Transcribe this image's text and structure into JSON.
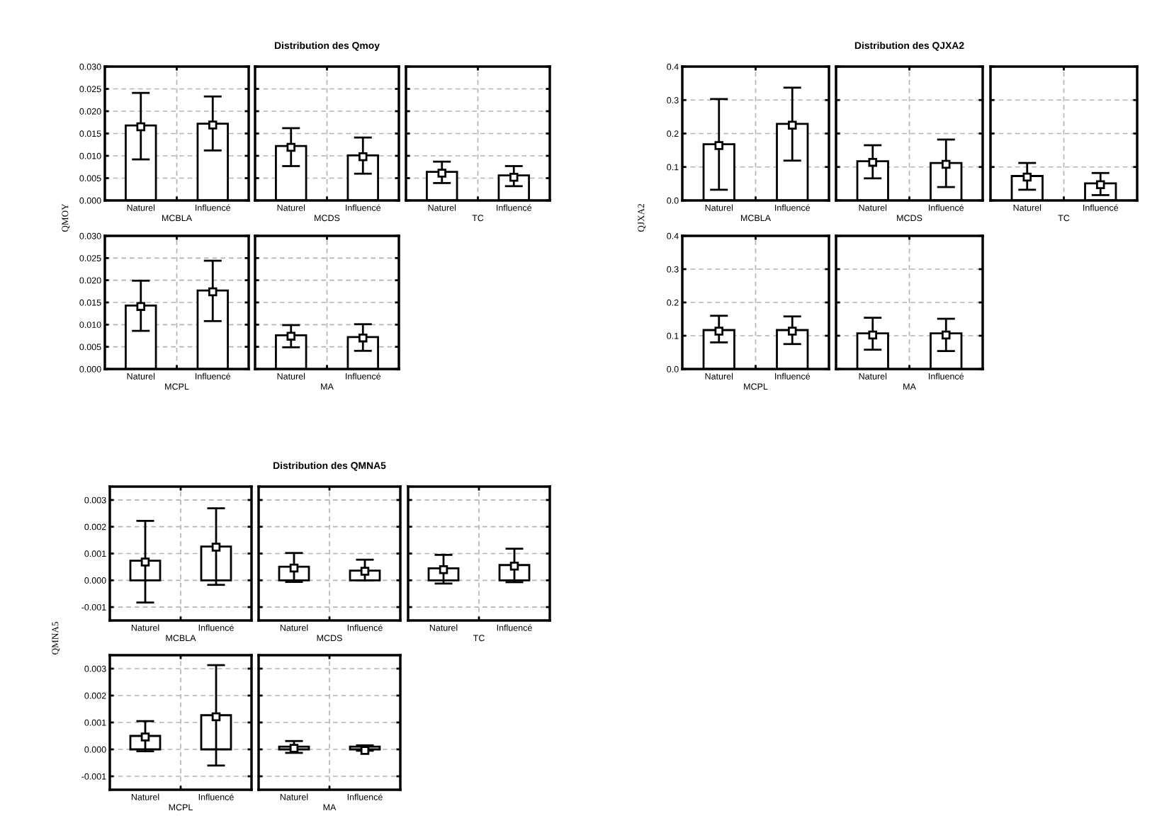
{
  "chart_data": [
    {
      "type": "bar",
      "ylabel": "QMOY",
      "categories": [
        "Naturel",
        "Influencé"
      ],
      "xlabel": "MCBLA",
      "ylim": [
        0,
        0.03
      ],
      "yticks": [
        {
          "value": 0,
          "label": "0.000"
        },
        {
          "value": 0.005,
          "label": "0.005"
        },
        {
          "value": 0.01,
          "label": "0.010"
        },
        {
          "value": 0.015,
          "label": "0.015"
        },
        {
          "value": 0.02,
          "label": "0.020"
        },
        {
          "value": 0.025,
          "label": "0.025"
        },
        {
          "value": 0.03,
          "label": "0.030"
        }
      ],
      "grid": true,
      "series": [
        {
          "color": "#ffffff",
          "values": [
            0.0168,
            0.0172
          ]
        },
        {
          "type": "scatter",
          "marker": "square",
          "color": "#ffffff",
          "values": [
            0.0165,
            0.0169
          ],
          "errors": [
            [
              0.0092,
              0.0241
            ],
            [
              0.0112,
              0.0233
            ]
          ]
        }
      ]
    },
    {
      "type": "bar",
      "title": "Distribution des Qmoy",
      "categories": [
        "Naturel",
        "Influencé"
      ],
      "xlabel": "MCDS",
      "ylim": [
        0,
        0.03
      ],
      "yticks": [
        {
          "value": 0,
          "label": null
        },
        {
          "value": 0.005,
          "label": null
        },
        {
          "value": 0.01,
          "label": null
        },
        {
          "value": 0.015,
          "label": null
        },
        {
          "value": 0.02,
          "label": null
        },
        {
          "value": 0.025,
          "label": null
        },
        {
          "value": 0.03,
          "label": null
        }
      ],
      "grid": true,
      "tick_labels": "x",
      "series": [
        {
          "color": "#ffffff",
          "values": [
            0.0122,
            0.0101
          ]
        },
        {
          "type": "scatter",
          "marker": "square",
          "color": "#ffffff",
          "values": [
            0.0119,
            0.0098
          ],
          "errors": [
            [
              0.0077,
              0.0162
            ],
            [
              0.006,
              0.0141
            ]
          ]
        }
      ]
    },
    {
      "type": "bar",
      "categories": [
        "Naturel",
        "Influencé"
      ],
      "xlabel": "TC",
      "ylim": [
        0,
        0.03
      ],
      "yticks": [
        {
          "value": 0,
          "label": null
        },
        {
          "value": 0.005,
          "label": null
        },
        {
          "value": 0.01,
          "label": null
        },
        {
          "value": 0.015,
          "label": null
        },
        {
          "value": 0.02,
          "label": null
        },
        {
          "value": 0.025,
          "label": null
        },
        {
          "value": 0.03,
          "label": null
        }
      ],
      "grid": true,
      "tick_labels": "x",
      "series": [
        {
          "color": "#ffffff",
          "values": [
            0.0064,
            0.0056
          ]
        },
        {
          "type": "scatter",
          "marker": "square",
          "color": "#ffffff",
          "values": [
            0.0061,
            0.0052
          ],
          "errors": [
            [
              0.0039,
              0.0087
            ],
            [
              0.0032,
              0.0077
            ]
          ]
        }
      ]
    },
    {
      "type": "bar",
      "categories": [
        "Naturel",
        "Influencé"
      ],
      "xlabel": "MCPL",
      "ylim": [
        0,
        0.03
      ],
      "yticks": [
        {
          "value": 0,
          "label": "0.000"
        },
        {
          "value": 0.005,
          "label": "0.005"
        },
        {
          "value": 0.01,
          "label": "0.010"
        },
        {
          "value": 0.015,
          "label": "0.015"
        },
        {
          "value": 0.02,
          "label": "0.020"
        },
        {
          "value": 0.025,
          "label": "0.025"
        },
        {
          "value": 0.03,
          "label": "0.030"
        }
      ],
      "grid": true,
      "series": [
        {
          "color": "#ffffff",
          "values": [
            0.0143,
            0.0177
          ]
        },
        {
          "type": "scatter",
          "marker": "square",
          "color": "#ffffff",
          "values": [
            0.0141,
            0.0174
          ],
          "errors": [
            [
              0.0086,
              0.0199
            ],
            [
              0.0108,
              0.0244
            ]
          ]
        }
      ]
    },
    {
      "type": "bar",
      "categories": [
        "Naturel",
        "Influencé"
      ],
      "xlabel": "MA",
      "ylim": [
        0,
        0.03
      ],
      "yticks": [
        {
          "value": 0,
          "label": null
        },
        {
          "value": 0.005,
          "label": null
        },
        {
          "value": 0.01,
          "label": null
        },
        {
          "value": 0.015,
          "label": null
        },
        {
          "value": 0.02,
          "label": null
        },
        {
          "value": 0.025,
          "label": null
        },
        {
          "value": 0.03,
          "label": null
        }
      ],
      "grid": true,
      "tick_labels": "x",
      "series": [
        {
          "color": "#ffffff",
          "values": [
            0.0076,
            0.0072
          ]
        },
        {
          "type": "scatter",
          "marker": "square",
          "color": "#ffffff",
          "values": [
            0.0074,
            0.007
          ],
          "errors": [
            [
              0.0049,
              0.0099
            ],
            [
              0.0041,
              0.0101
            ]
          ]
        }
      ]
    },
    {
      "type": "bar",
      "ylabel": "QJXA2",
      "categories": [
        "Naturel",
        "Influencé"
      ],
      "xlabel": "MCBLA",
      "ylim": [
        0,
        0.4
      ],
      "yticks": [
        {
          "value": 0,
          "label": "0.0"
        },
        0.1,
        0.2,
        0.3,
        0.4
      ],
      "grid": true,
      "series": [
        {
          "color": "#ffffff",
          "values": [
            0.168,
            0.229
          ]
        },
        {
          "type": "scatter",
          "marker": "square",
          "color": "#ffffff",
          "values": [
            0.164,
            0.225
          ],
          "errors": [
            [
              0.032,
              0.303
            ],
            [
              0.119,
              0.337
            ]
          ]
        }
      ]
    },
    {
      "type": "bar",
      "title": "Distribution des QJXA2",
      "categories": [
        "Naturel",
        "Influencé"
      ],
      "xlabel": "MCDS",
      "ylim": [
        0,
        0.4
      ],
      "yticks": [
        {
          "value": 0,
          "label": null
        },
        {
          "value": 0.1,
          "label": null
        },
        {
          "value": 0.2,
          "label": null
        },
        {
          "value": 0.3,
          "label": null
        },
        {
          "value": 0.4,
          "label": null
        }
      ],
      "grid": true,
      "tick_labels": "x",
      "series": [
        {
          "color": "#ffffff",
          "values": [
            0.117,
            0.112
          ]
        },
        {
          "type": "scatter",
          "marker": "square",
          "color": "#ffffff",
          "values": [
            0.114,
            0.108
          ],
          "errors": [
            [
              0.066,
              0.165
            ],
            [
              0.04,
              0.182
            ]
          ]
        }
      ]
    },
    {
      "type": "bar",
      "categories": [
        "Naturel",
        "Influencé"
      ],
      "xlabel": "TC",
      "ylim": [
        0,
        0.4
      ],
      "yticks": [
        {
          "value": 0,
          "label": null
        },
        {
          "value": 0.1,
          "label": null
        },
        {
          "value": 0.2,
          "label": null
        },
        {
          "value": 0.3,
          "label": null
        },
        {
          "value": 0.4,
          "label": null
        }
      ],
      "grid": true,
      "tick_labels": "x",
      "series": [
        {
          "color": "#ffffff",
          "values": [
            0.073,
            0.051
          ]
        },
        {
          "type": "scatter",
          "marker": "square",
          "color": "#ffffff",
          "values": [
            0.07,
            0.047
          ],
          "errors": [
            [
              0.032,
              0.112
            ],
            [
              0.016,
              0.082
            ]
          ]
        }
      ]
    },
    {
      "type": "bar",
      "categories": [
        "Naturel",
        "Influencé"
      ],
      "xlabel": "MCPL",
      "ylim": [
        0,
        0.4
      ],
      "yticks": [
        {
          "value": 0,
          "label": "0.0"
        },
        0.1,
        0.2,
        0.3,
        0.4
      ],
      "grid": true,
      "series": [
        {
          "color": "#ffffff",
          "values": [
            0.117,
            0.117
          ]
        },
        {
          "type": "scatter",
          "marker": "square",
          "color": "#ffffff",
          "values": [
            0.114,
            0.114
          ],
          "errors": [
            [
              0.08,
              0.16
            ],
            [
              0.075,
              0.158
            ]
          ]
        }
      ]
    },
    {
      "type": "bar",
      "categories": [
        "Naturel",
        "Influencé"
      ],
      "xlabel": "MA",
      "ylim": [
        0,
        0.4
      ],
      "yticks": [
        {
          "value": 0,
          "label": null
        },
        {
          "value": 0.1,
          "label": null
        },
        {
          "value": 0.2,
          "label": null
        },
        {
          "value": 0.3,
          "label": null
        },
        {
          "value": 0.4,
          "label": null
        }
      ],
      "grid": true,
      "tick_labels": "x",
      "series": [
        {
          "color": "#ffffff",
          "values": [
            0.107,
            0.107
          ]
        },
        {
          "type": "scatter",
          "marker": "square",
          "color": "#ffffff",
          "values": [
            0.102,
            0.102
          ],
          "errors": [
            [
              0.058,
              0.154
            ],
            [
              0.054,
              0.151
            ]
          ]
        }
      ]
    },
    {
      "type": "bar",
      "ylabel": "QMNA5",
      "categories": [
        "Naturel",
        "Influencé"
      ],
      "xlabel": "MCBLA",
      "ylim": [
        -0.0015,
        0.0035
      ],
      "yticks": [
        -0.001,
        {
          "value": 0,
          "label": "0.000"
        },
        0.001,
        0.002,
        0.003
      ],
      "grid": true,
      "series": [
        {
          "color": "#ffffff",
          "values": [
            0.00073,
            0.00126
          ]
        },
        {
          "type": "scatter",
          "marker": "square",
          "color": "#ffffff",
          "values": [
            0.00068,
            0.00124
          ],
          "errors": [
            [
              -0.00083,
              0.00222
            ],
            [
              -0.00017,
              0.00269
            ]
          ]
        }
      ]
    },
    {
      "type": "bar",
      "title": "Distribution des QMNA5",
      "categories": [
        "Naturel",
        "Influencé"
      ],
      "xlabel": "MCDS",
      "ylim": [
        -0.0015,
        0.0035
      ],
      "yticks": [
        {
          "value": -0.001,
          "label": null
        },
        {
          "value": 0,
          "label": null
        },
        {
          "value": 0.001,
          "label": null
        },
        {
          "value": 0.002,
          "label": null
        },
        {
          "value": 0.003,
          "label": null
        }
      ],
      "grid": true,
      "tick_labels": "x",
      "series": [
        {
          "color": "#ffffff",
          "values": [
            0.00051,
            0.00036
          ]
        },
        {
          "type": "scatter",
          "marker": "square",
          "color": "#ffffff",
          "values": [
            0.00046,
            0.00034
          ],
          "errors": [
            [
              -6e-05,
              0.00102
            ],
            [
              0.0,
              0.00077
            ]
          ]
        }
      ]
    },
    {
      "type": "bar",
      "categories": [
        "Naturel",
        "Influencé"
      ],
      "xlabel": "TC",
      "ylim": [
        -0.0015,
        0.0035
      ],
      "yticks": [
        {
          "value": -0.001,
          "label": null
        },
        {
          "value": 0,
          "label": null
        },
        {
          "value": 0.001,
          "label": null
        },
        {
          "value": 0.002,
          "label": null
        },
        {
          "value": 0.003,
          "label": null
        }
      ],
      "grid": true,
      "tick_labels": "x",
      "series": [
        {
          "color": "#ffffff",
          "values": [
            0.00045,
            0.00057
          ]
        },
        {
          "type": "scatter",
          "marker": "square",
          "color": "#ffffff",
          "values": [
            0.0004,
            0.00053
          ],
          "errors": [
            [
              -0.00012,
              0.00095
            ],
            [
              -7e-05,
              0.00118
            ]
          ]
        }
      ]
    },
    {
      "type": "bar",
      "categories": [
        "Naturel",
        "Influencé"
      ],
      "xlabel": "MCPL",
      "ylim": [
        -0.0015,
        0.0035
      ],
      "yticks": [
        -0.001,
        {
          "value": 0,
          "label": "0.000"
        },
        0.001,
        0.002,
        0.003
      ],
      "grid": true,
      "series": [
        {
          "color": "#ffffff",
          "values": [
            0.0005,
            0.00127
          ]
        },
        {
          "type": "scatter",
          "marker": "square",
          "color": "#ffffff",
          "values": [
            0.00046,
            0.00121
          ],
          "errors": [
            [
              -7e-05,
              0.00105
            ],
            [
              -0.0006,
              0.00313
            ]
          ]
        }
      ]
    },
    {
      "type": "bar",
      "categories": [
        "Naturel",
        "Influencé"
      ],
      "xlabel": "MA",
      "ylim": [
        -0.0015,
        0.0035
      ],
      "yticks": [
        {
          "value": -0.001,
          "label": null
        },
        {
          "value": 0,
          "label": null
        },
        {
          "value": 0.001,
          "label": null
        },
        {
          "value": 0.002,
          "label": null
        },
        {
          "value": 0.003,
          "label": null
        }
      ],
      "grid": true,
      "tick_labels": "x",
      "series": [
        {
          "color": "#ffffff",
          "values": [
            0.0001,
            0.0001
          ]
        },
        {
          "type": "scatter",
          "marker": "square",
          "color": "#ffffff",
          "values": [
            4e-05,
            -4e-05
          ],
          "errors": [
            [
              -0.00013,
              0.00031
            ],
            [
              -5e-05,
              0.00015
            ]
          ]
        }
      ]
    }
  ]
}
